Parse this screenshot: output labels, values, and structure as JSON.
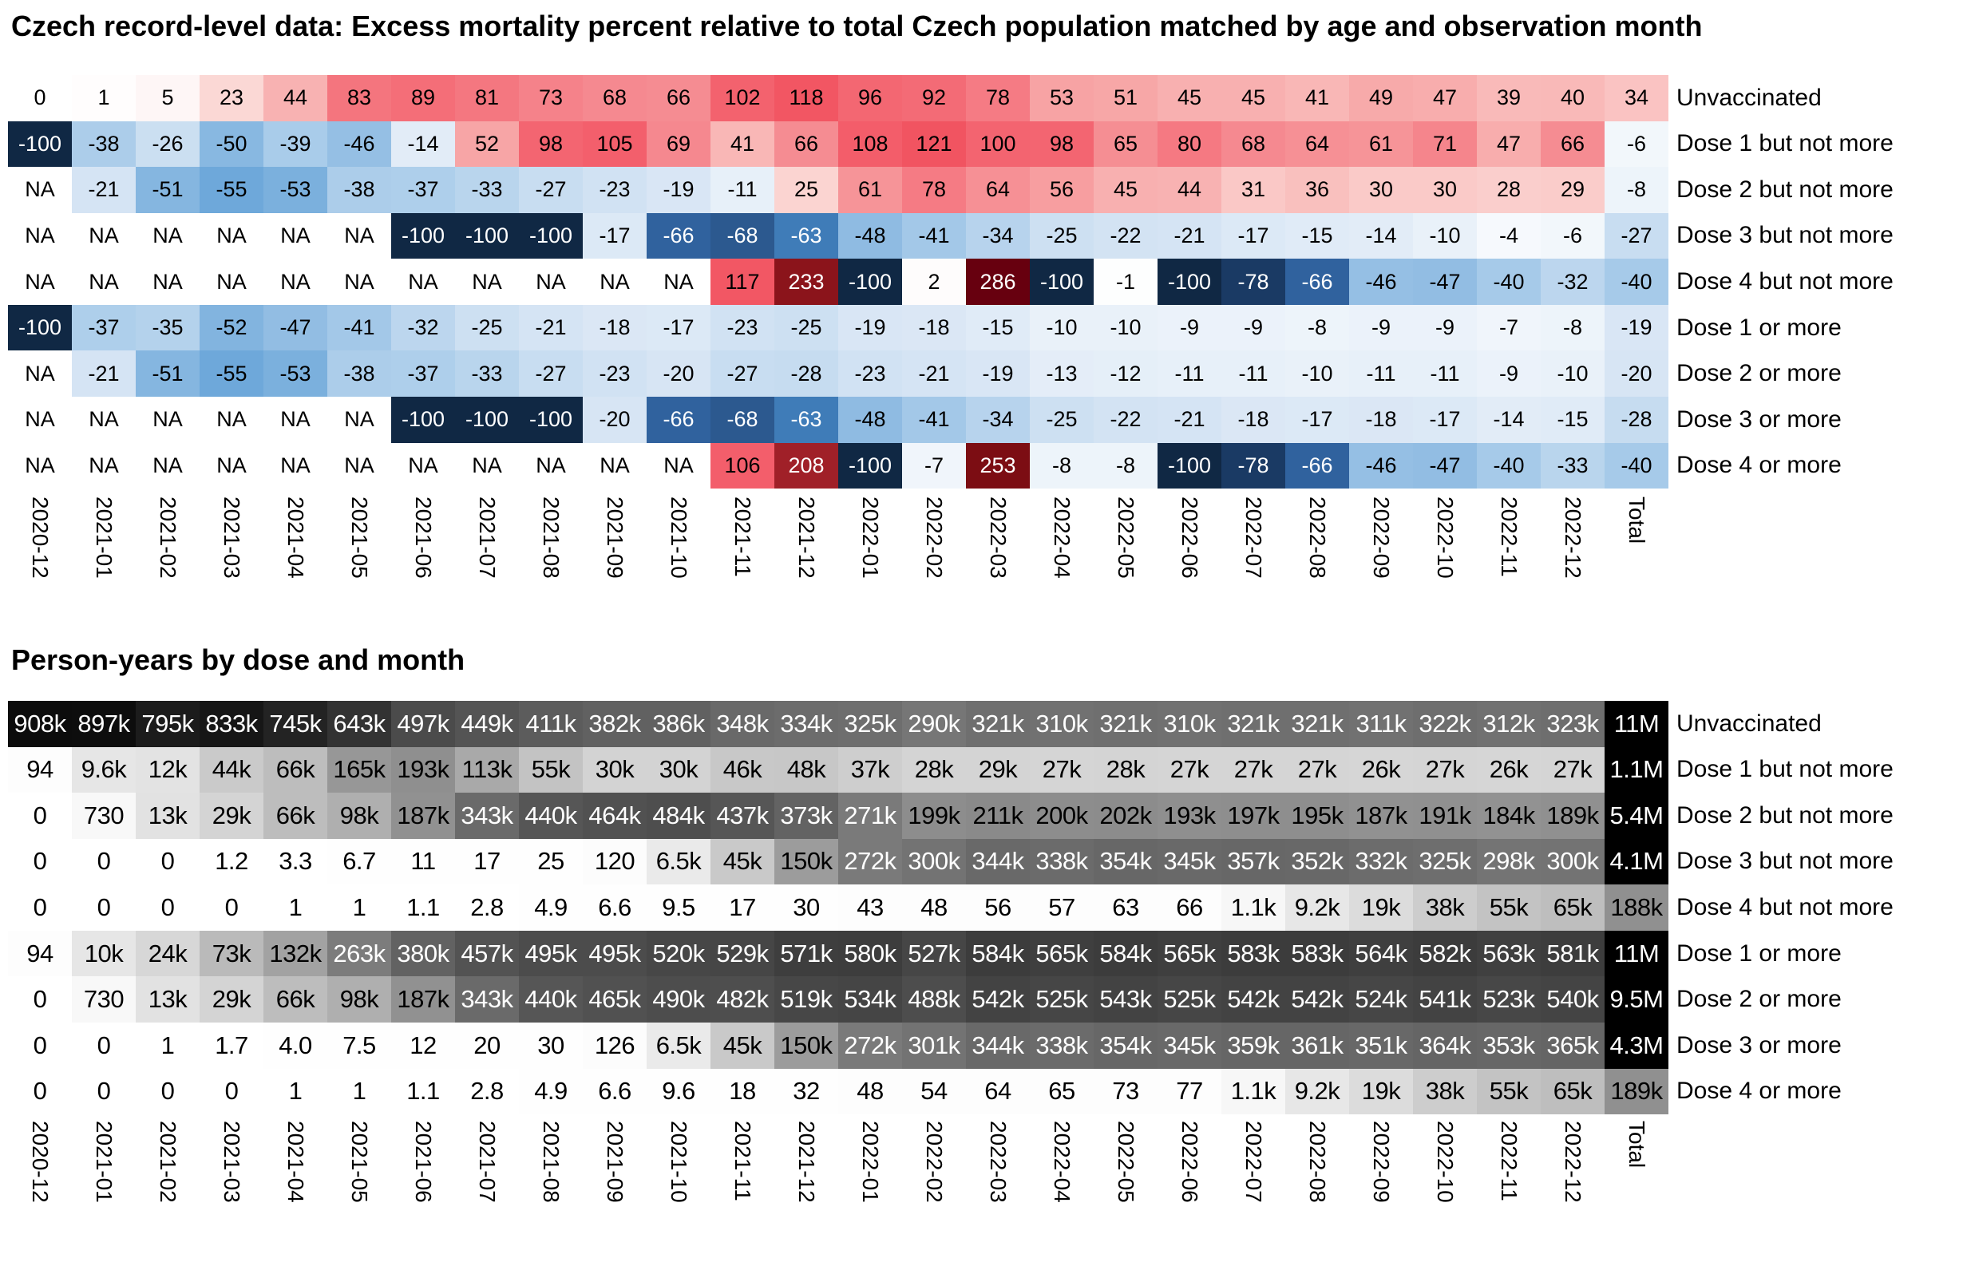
{
  "page": {
    "background": "#ffffff"
  },
  "chart_data": [
    {
      "type": "heatmap",
      "title": "Czech record-level data: Excess mortality percent relative to total Czech population matched by age and observation month",
      "unit": "percent",
      "legend_position": "none",
      "columns": [
        "2020-12",
        "2021-01",
        "2021-02",
        "2021-03",
        "2021-04",
        "2021-05",
        "2021-06",
        "2021-07",
        "2021-08",
        "2021-09",
        "2021-10",
        "2021-11",
        "2021-12",
        "2022-01",
        "2022-02",
        "2022-03",
        "2022-04",
        "2022-05",
        "2022-06",
        "2022-07",
        "2022-08",
        "2022-09",
        "2022-10",
        "2022-11",
        "2022-12",
        "Total"
      ],
      "rows": [
        {
          "label": "Unvaccinated",
          "values": [
            "0",
            "1",
            "5",
            "23",
            "44",
            "83",
            "89",
            "81",
            "73",
            "68",
            "66",
            "102",
            "118",
            "96",
            "92",
            "78",
            "53",
            "51",
            "45",
            "45",
            "41",
            "49",
            "47",
            "39",
            "40",
            "34"
          ]
        },
        {
          "label": "Dose 1 but not more",
          "values": [
            "-100",
            "-38",
            "-26",
            "-50",
            "-39",
            "-46",
            "-14",
            "52",
            "98",
            "105",
            "69",
            "41",
            "66",
            "108",
            "121",
            "100",
            "98",
            "65",
            "80",
            "68",
            "64",
            "61",
            "71",
            "47",
            "66",
            "-6"
          ]
        },
        {
          "label": "Dose 2 but not more",
          "values": [
            "NA",
            "-21",
            "-51",
            "-55",
            "-53",
            "-38",
            "-37",
            "-33",
            "-27",
            "-23",
            "-19",
            "-11",
            "25",
            "61",
            "78",
            "64",
            "56",
            "45",
            "44",
            "31",
            "36",
            "30",
            "30",
            "28",
            "29",
            "-8"
          ]
        },
        {
          "label": "Dose 3 but not more",
          "values": [
            "NA",
            "NA",
            "NA",
            "NA",
            "NA",
            "NA",
            "-100",
            "-100",
            "-100",
            "-17",
            "-66",
            "-68",
            "-63",
            "-48",
            "-41",
            "-34",
            "-25",
            "-22",
            "-21",
            "-17",
            "-15",
            "-14",
            "-10",
            "-4",
            "-6",
            "-27"
          ]
        },
        {
          "label": "Dose 4 but not more",
          "values": [
            "NA",
            "NA",
            "NA",
            "NA",
            "NA",
            "NA",
            "NA",
            "NA",
            "NA",
            "NA",
            "NA",
            "117",
            "233",
            "-100",
            "2",
            "286",
            "-100",
            "-1",
            "-100",
            "-78",
            "-66",
            "-46",
            "-47",
            "-40",
            "-32",
            "-40"
          ]
        },
        {
          "label": "Dose 1 or more",
          "values": [
            "-100",
            "-37",
            "-35",
            "-52",
            "-47",
            "-41",
            "-32",
            "-25",
            "-21",
            "-18",
            "-17",
            "-23",
            "-25",
            "-19",
            "-18",
            "-15",
            "-10",
            "-10",
            "-9",
            "-9",
            "-8",
            "-9",
            "-9",
            "-7",
            "-8",
            "-19"
          ]
        },
        {
          "label": "Dose 2 or more",
          "values": [
            "NA",
            "-21",
            "-51",
            "-55",
            "-53",
            "-38",
            "-37",
            "-33",
            "-27",
            "-23",
            "-20",
            "-27",
            "-28",
            "-23",
            "-21",
            "-19",
            "-13",
            "-12",
            "-11",
            "-11",
            "-10",
            "-11",
            "-11",
            "-9",
            "-10",
            "-20"
          ]
        },
        {
          "label": "Dose 3 or more",
          "values": [
            "NA",
            "NA",
            "NA",
            "NA",
            "NA",
            "NA",
            "-100",
            "-100",
            "-100",
            "-20",
            "-66",
            "-68",
            "-63",
            "-48",
            "-41",
            "-34",
            "-25",
            "-22",
            "-21",
            "-18",
            "-17",
            "-18",
            "-17",
            "-14",
            "-15",
            "-28"
          ]
        },
        {
          "label": "Dose 4 or more",
          "values": [
            "NA",
            "NA",
            "NA",
            "NA",
            "NA",
            "NA",
            "NA",
            "NA",
            "NA",
            "NA",
            "NA",
            "106",
            "208",
            "-100",
            "-7",
            "253",
            "-8",
            "-8",
            "-100",
            "-78",
            "-66",
            "-46",
            "-47",
            "-40",
            "-33",
            "-40"
          ]
        }
      ],
      "color_scale": {
        "style": "diverging-red-blue",
        "na_color": "#ffffff",
        "negative_stops": [
          [
            0,
            "#ffffff"
          ],
          [
            5,
            "#f4f8fc"
          ],
          [
            10,
            "#e9f1f9"
          ],
          [
            15,
            "#e0ebf7"
          ],
          [
            20,
            "#d7e5f4"
          ],
          [
            25,
            "#cde0f2"
          ],
          [
            30,
            "#c1d9ef"
          ],
          [
            35,
            "#b4d2ec"
          ],
          [
            40,
            "#a6cae9"
          ],
          [
            46,
            "#95bfe4"
          ],
          [
            52,
            "#82b4df"
          ],
          [
            55,
            "#6ea8da"
          ],
          [
            58,
            "#5f9fd5"
          ],
          [
            62,
            "#4484c0"
          ],
          [
            66,
            "#30629e"
          ],
          [
            70,
            "#27507f"
          ],
          [
            78,
            "#1a3a64"
          ],
          [
            100,
            "#102844"
          ]
        ],
        "positive_stops": [
          [
            0,
            "#ffffff"
          ],
          [
            3,
            "#fefafa"
          ],
          [
            8,
            "#fdf1f0"
          ],
          [
            15,
            "#fce4e2"
          ],
          [
            23,
            "#fbd8d5"
          ],
          [
            30,
            "#facac8"
          ],
          [
            38,
            "#f9bcbb"
          ],
          [
            45,
            "#f8b0b0"
          ],
          [
            52,
            "#f7a5a6"
          ],
          [
            60,
            "#f69699"
          ],
          [
            68,
            "#f58990"
          ],
          [
            76,
            "#f57e86"
          ],
          [
            85,
            "#f4727c"
          ],
          [
            95,
            "#f36873"
          ],
          [
            105,
            "#f35f6c"
          ],
          [
            118,
            "#f25663"
          ],
          [
            130,
            "#ef4f5c"
          ],
          [
            208,
            "#a02028"
          ],
          [
            233,
            "#8b141b"
          ],
          [
            255,
            "#7a0c12"
          ],
          [
            286,
            "#67000f"
          ]
        ],
        "white_text_neg_at_or_below": -60,
        "white_text_pos_at_or_above": 180
      }
    },
    {
      "type": "heatmap",
      "title": "Person-years by dose and month",
      "unit": "person-years",
      "legend_position": "none",
      "columns": [
        "2020-12",
        "2021-01",
        "2021-02",
        "2021-03",
        "2021-04",
        "2021-05",
        "2021-06",
        "2021-07",
        "2021-08",
        "2021-09",
        "2021-10",
        "2021-11",
        "2021-12",
        "2022-01",
        "2022-02",
        "2022-03",
        "2022-04",
        "2022-05",
        "2022-06",
        "2022-07",
        "2022-08",
        "2022-09",
        "2022-10",
        "2022-11",
        "2022-12",
        "Total"
      ],
      "rows": [
        {
          "label": "Unvaccinated",
          "values": [
            "908k",
            "897k",
            "795k",
            "833k",
            "745k",
            "643k",
            "497k",
            "449k",
            "411k",
            "382k",
            "386k",
            "348k",
            "334k",
            "325k",
            "290k",
            "321k",
            "310k",
            "321k",
            "310k",
            "321k",
            "321k",
            "311k",
            "322k",
            "312k",
            "323k",
            "11M"
          ]
        },
        {
          "label": "Dose 1 but not more",
          "values": [
            "94",
            "9.6k",
            "12k",
            "44k",
            "66k",
            "165k",
            "193k",
            "113k",
            "55k",
            "30k",
            "30k",
            "46k",
            "48k",
            "37k",
            "28k",
            "29k",
            "27k",
            "28k",
            "27k",
            "27k",
            "27k",
            "26k",
            "27k",
            "26k",
            "27k",
            "1.1M"
          ]
        },
        {
          "label": "Dose 2 but not more",
          "values": [
            "0",
            "730",
            "13k",
            "29k",
            "66k",
            "98k",
            "187k",
            "343k",
            "440k",
            "464k",
            "484k",
            "437k",
            "373k",
            "271k",
            "199k",
            "211k",
            "200k",
            "202k",
            "193k",
            "197k",
            "195k",
            "187k",
            "191k",
            "184k",
            "189k",
            "5.4M"
          ]
        },
        {
          "label": "Dose 3 but not more",
          "values": [
            "0",
            "0",
            "0",
            "1.2",
            "3.3",
            "6.7",
            "11",
            "17",
            "25",
            "120",
            "6.5k",
            "45k",
            "150k",
            "272k",
            "300k",
            "344k",
            "338k",
            "354k",
            "345k",
            "357k",
            "352k",
            "332k",
            "325k",
            "298k",
            "300k",
            "4.1M"
          ]
        },
        {
          "label": "Dose 4 but not more",
          "values": [
            "0",
            "0",
            "0",
            "0",
            "1",
            "1",
            "1.1",
            "2.8",
            "4.9",
            "6.6",
            "9.5",
            "17",
            "30",
            "43",
            "48",
            "56",
            "57",
            "63",
            "66",
            "1.1k",
            "9.2k",
            "19k",
            "38k",
            "55k",
            "65k",
            "188k"
          ]
        },
        {
          "label": "Dose 1 or more",
          "values": [
            "94",
            "10k",
            "24k",
            "73k",
            "132k",
            "263k",
            "380k",
            "457k",
            "495k",
            "495k",
            "520k",
            "529k",
            "571k",
            "580k",
            "527k",
            "584k",
            "565k",
            "584k",
            "565k",
            "583k",
            "583k",
            "564k",
            "582k",
            "563k",
            "581k",
            "11M"
          ]
        },
        {
          "label": "Dose 2 or more",
          "values": [
            "0",
            "730",
            "13k",
            "29k",
            "66k",
            "98k",
            "187k",
            "343k",
            "440k",
            "465k",
            "490k",
            "482k",
            "519k",
            "534k",
            "488k",
            "542k",
            "525k",
            "543k",
            "525k",
            "542k",
            "542k",
            "524k",
            "541k",
            "523k",
            "540k",
            "9.5M"
          ]
        },
        {
          "label": "Dose 3 or more",
          "values": [
            "0",
            "0",
            "1",
            "1.7",
            "4.0",
            "7.5",
            "12",
            "20",
            "30",
            "126",
            "6.5k",
            "45k",
            "150k",
            "272k",
            "301k",
            "344k",
            "338k",
            "354k",
            "345k",
            "359k",
            "361k",
            "351k",
            "364k",
            "353k",
            "365k",
            "4.3M"
          ]
        },
        {
          "label": "Dose 4 or more",
          "values": [
            "0",
            "0",
            "0",
            "0",
            "1",
            "1",
            "1.1",
            "2.8",
            "4.9",
            "6.6",
            "9.6",
            "18",
            "32",
            "48",
            "54",
            "64",
            "65",
            "73",
            "77",
            "1.1k",
            "9.2k",
            "19k",
            "38k",
            "55k",
            "65k",
            "189k"
          ]
        }
      ],
      "color_scale": {
        "style": "sequential-gray-sqrt",
        "vmax": 1000000,
        "white_text_below_luminance": 135
      }
    }
  ]
}
